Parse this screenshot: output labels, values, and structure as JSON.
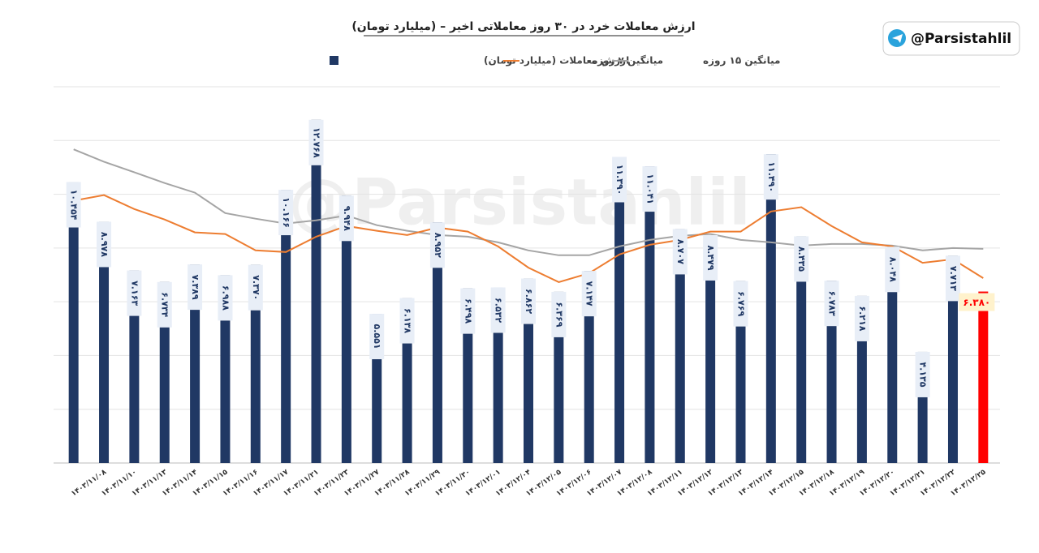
{
  "chart_data": {
    "type": "bar",
    "title": "ارزش معاملات خرد در ۳۰ روز معاملاتی اخیر – (میلیارد تومان)",
    "categories": [
      null,
      "۱۴۰۳/۱۱/۰۸",
      "۱۴۰۳/۱۱/۱۰",
      "۱۴۰۳/۱۱/۱۳",
      "۱۴۰۳/۱۱/۱۴",
      "۱۴۰۳/۱۱/۱۵",
      "۱۴۰۳/۱۱/۱۶",
      "۱۴۰۳/۱۱/۱۷",
      "۱۴۰۳/۱۱/۲۱",
      "۱۴۰۳/۱۱/۲۳",
      "۱۴۰۳/۱۱/۲۷",
      "۱۴۰۳/۱۱/۲۸",
      "۱۴۰۳/۱۱/۲۹",
      "۱۴۰۳/۱۱/۳۰",
      "۱۴۰۳/۱۲/۰۱",
      "۱۴۰۳/۱۲/۰۴",
      "۱۴۰۳/۱۲/۰۵",
      "۱۴۰۳/۱۲/۰۶",
      "۱۴۰۳/۱۲/۰۷",
      "۱۴۰۳/۱۲/۰۸",
      "۱۴۰۳/۱۲/۱۱",
      "۱۴۰۳/۱۲/۱۲",
      "۱۴۰۳/۱۲/۱۳",
      "۱۴۰۳/۱۲/۱۴",
      "۱۴۰۳/۱۲/۱۵",
      "۱۴۰۳/۱۲/۱۸",
      "۱۴۰۳/۱۲/۱۹",
      "۱۴۰۳/۱۲/۲۰",
      "۱۴۰۳/۱۲/۲۱",
      "۱۴۰۳/۱۲/۲۲",
      "۱۴۰۳/۱۲/۲۵"
    ],
    "series": [
      {
        "name": "ارزش معاملات (میلیارد تومان)",
        "type": "bar",
        "color": "#203864",
        "values": [
          10.454,
          8.978,
          7.163,
          6.734,
          7.389,
          6.988,
          7.37,
          10.166,
          12.768,
          9.948,
          5.551,
          6.138,
          8.952,
          6.498,
          6.532,
          6.862,
          6.369,
          7.147,
          11.39,
          11.041,
          8.707,
          8.479,
          6.769,
          11.49,
          8.435,
          6.783,
          6.218,
          8.048,
          4.135,
          7.713,
          6.38
        ],
        "value_labels": [
          "۱۰.۴۵۴",
          "۸.۹۷۸",
          "۷.۱۶۳",
          "۶.۷۳۴",
          "۷.۳۸۹",
          "۶.۹۸۸",
          "۷.۳۷۰",
          "۱۰.۱۶۶",
          "۱۲.۷۶۸",
          "۹.۹۴۸",
          "۵.۵۵۱",
          "۶.۱۳۸",
          "۸.۹۵۲",
          "۶.۴۹۸",
          "۶.۵۳۲",
          "۶.۸۶۲",
          "۶.۳۶۹",
          "۷.۱۴۷",
          "۱۱.۳۹۰",
          "۱۱.۰۴۱",
          "۸.۷۰۷",
          "۸.۴۷۹",
          "۶.۷۶۹",
          "۱۱.۴۹۰",
          "۸.۴۳۵",
          "۶.۷۸۳",
          "۶.۲۱۸",
          "۸.۰۴۸",
          "۴.۱۳۵",
          "۷.۷۱۳",
          "۶.۳۸۰"
        ],
        "colors": [
          "#203864",
          "#203864",
          "#203864",
          "#203864",
          "#203864",
          "#203864",
          "#203864",
          "#203864",
          "#203864",
          "#203864",
          "#203864",
          "#203864",
          "#203864",
          "#203864",
          "#203864",
          "#203864",
          "#203864",
          "#203864",
          "#203864",
          "#203864",
          "#203864",
          "#203864",
          "#203864",
          "#203864",
          "#203864",
          "#203864",
          "#203864",
          "#203864",
          "#203864",
          "#203864",
          "#ff0000"
        ]
      },
      {
        "name": "میانگین ۷ روزه",
        "type": "line",
        "color": "#ed7d31",
        "values": [
          9.76,
          9.97,
          9.45,
          9.06,
          8.58,
          8.52,
          7.91,
          7.85,
          8.42,
          8.82,
          8.64,
          8.48,
          8.76,
          8.61,
          8.06,
          7.27,
          6.73,
          7.06,
          7.76,
          8.12,
          8.3,
          8.61,
          8.61,
          9.36,
          9.52,
          8.82,
          8.21,
          8.06,
          7.45,
          7.58,
          6.88
        ]
      },
      {
        "name": "میانگین ۱۵ روزه",
        "type": "line",
        "color": "#a5a5a5",
        "values": [
          11.67,
          11.21,
          10.82,
          10.42,
          10.06,
          9.3,
          9.09,
          8.91,
          9.03,
          9.21,
          8.85,
          8.64,
          8.48,
          8.42,
          8.21,
          7.91,
          7.73,
          7.73,
          8.06,
          8.3,
          8.45,
          8.52,
          8.3,
          8.21,
          8.09,
          8.15,
          8.15,
          8.09,
          7.91,
          8.0,
          7.97
        ]
      }
    ],
    "ylim": [
      0,
      14
    ],
    "yticks": [
      0,
      2,
      4,
      6,
      8,
      10,
      12,
      14
    ],
    "grid": true
  },
  "brand": {
    "handle": "@Parsistahlil",
    "watermark": "@Parsistahlil"
  }
}
